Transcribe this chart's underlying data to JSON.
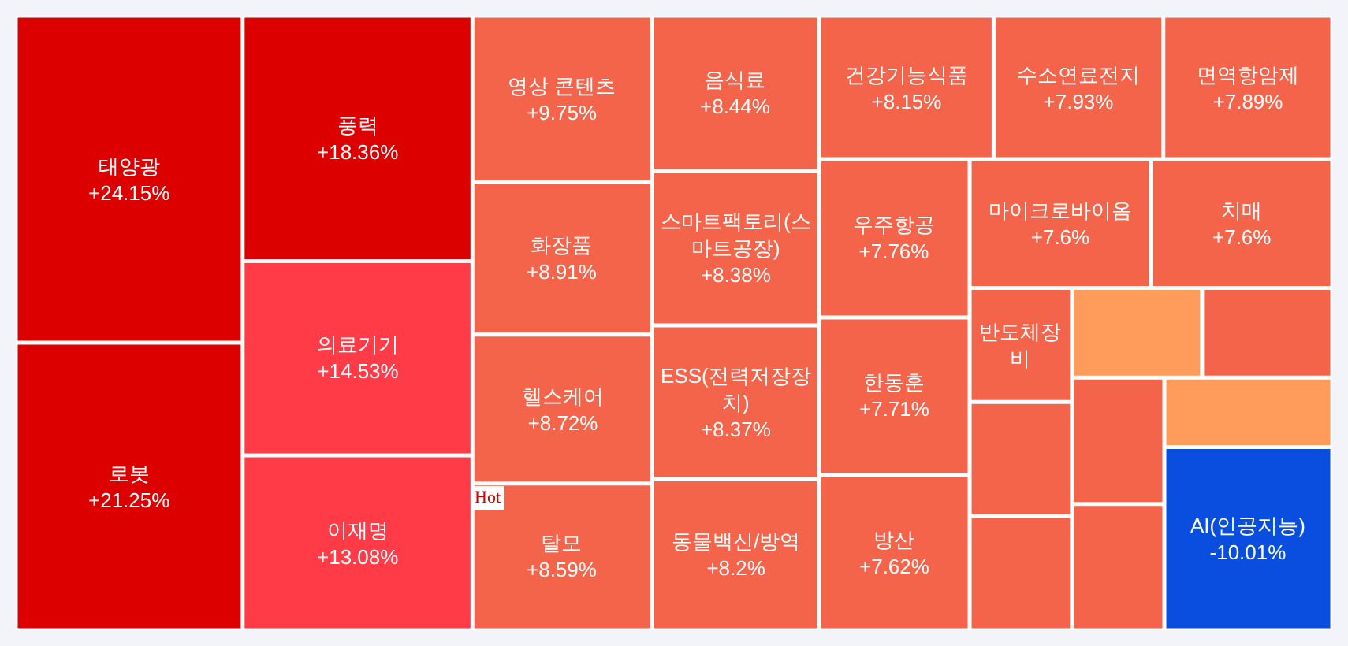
{
  "chart_data": {
    "type": "other",
    "categories": [
      "태양광",
      "로봇",
      "풍력",
      "의료기기",
      "이재명",
      "영상 콘텐츠",
      "화장품",
      "헬스케어",
      "탈모",
      "음식료",
      "스마트팩토리(스마트공장)",
      "ESS(전력저장장치)",
      "동물백신/방역",
      "건강기능식품",
      "수소연료전지",
      "면역항암제",
      "우주항공",
      "한동훈",
      "방산",
      "마이크로바이옴",
      "치매",
      "반도체장비",
      null,
      null,
      null,
      null,
      null,
      null,
      null,
      "AI(인공지능)"
    ],
    "values": [
      24.15,
      21.25,
      18.36,
      14.53,
      13.08,
      9.75,
      8.91,
      8.72,
      8.59,
      8.44,
      8.38,
      8.37,
      8.2,
      8.15,
      7.93,
      7.89,
      7.76,
      7.71,
      7.62,
      7.6,
      7.6,
      null,
      null,
      null,
      null,
      null,
      null,
      null,
      null,
      -10.01
    ],
    "value_labels": [
      "+24.15%",
      "+21.25%",
      "+18.36%",
      "+14.53%",
      "+13.08%",
      "+9.75%",
      "+8.91%",
      "+8.72%",
      "+8.59%",
      "+8.44%",
      "+8.38%",
      "+8.37%",
      "+8.2%",
      "+8.15%",
      "+7.93%",
      "+7.89%",
      "+7.76%",
      "+7.71%",
      "+7.62%",
      "+7.6%",
      "+7.6%",
      null,
      null,
      null,
      null,
      null,
      null,
      null,
      null,
      "-10.01%"
    ],
    "colors": [
      "#dc0000",
      "#dc0000",
      "#dc0000",
      "#ff3b47",
      "#ff3b47",
      "#f4644b",
      "#f4644b",
      "#f4644b",
      "#f4644b",
      "#f4644b",
      "#f4644b",
      "#f4644b",
      "#f4644b",
      "#f4644b",
      "#f4644b",
      "#f4644b",
      "#f4644b",
      "#f4644b",
      "#f4644b",
      "#f4644b",
      "#f4644b",
      "#f4644b",
      "#f4644b",
      "#f4644b",
      "#ff9b5b",
      "#f4644b",
      "#f4644b",
      "#f4644b",
      "#ff9b5b",
      "#0a4ee0"
    ],
    "annotations": [
      {
        "text": "Hot",
        "x": "탈모"
      }
    ]
  }
}
